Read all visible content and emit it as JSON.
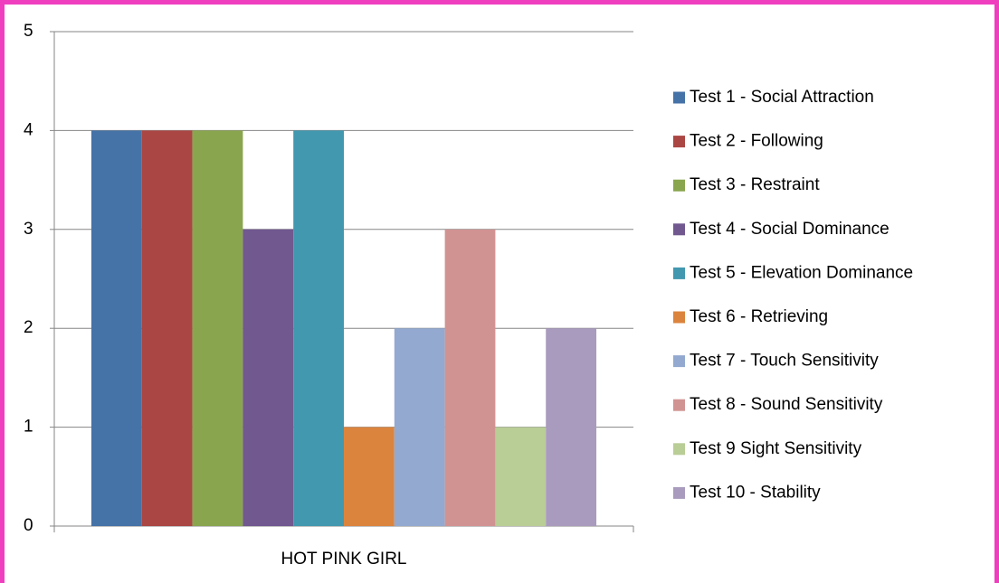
{
  "chart_data": {
    "type": "bar",
    "categories": [
      "HOT PINK GIRL"
    ],
    "series": [
      {
        "name": "Test 1 - Social Attraction",
        "color": "#4572a7",
        "values": [
          4
        ]
      },
      {
        "name": "Test 2 - Following",
        "color": "#aa4643",
        "values": [
          4
        ]
      },
      {
        "name": "Test 3 - Restraint",
        "color": "#89a54e",
        "values": [
          4
        ]
      },
      {
        "name": "Test 4 - Social Dominance",
        "color": "#71588f",
        "values": [
          3
        ]
      },
      {
        "name": "Test 5 - Elevation Dominance",
        "color": "#4198af",
        "values": [
          4
        ]
      },
      {
        "name": "Test 6 - Retrieving",
        "color": "#db843d",
        "values": [
          1
        ]
      },
      {
        "name": "Test 7 - Touch Sensitivity",
        "color": "#93a9cf",
        "values": [
          2
        ]
      },
      {
        "name": "Test 8 - Sound Sensitivity",
        "color": "#d19392",
        "values": [
          3
        ]
      },
      {
        "name": "Test 9 Sight Sensitivity",
        "color": "#b9cd96",
        "values": [
          1
        ]
      },
      {
        "name": "Test 10 - Stability",
        "color": "#a99bbd",
        "values": [
          2
        ]
      }
    ],
    "ylim": [
      0,
      5
    ],
    "yticks": [
      0,
      1,
      2,
      3,
      4,
      5
    ],
    "grid": true,
    "legend": "right"
  }
}
